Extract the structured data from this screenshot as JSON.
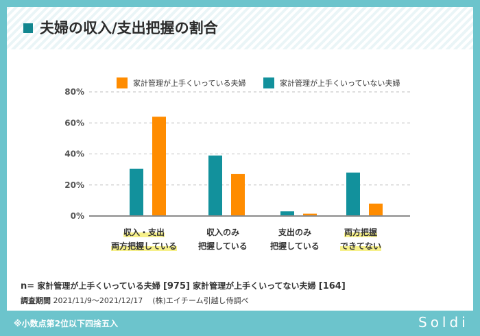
{
  "title": "夫婦の収入/支出把握の割合",
  "footer_note": "※小数点第2位以下四捨五入",
  "logo_text": "Soldi",
  "colors": {
    "orange": "#ff8c00",
    "teal": "#12919c",
    "accent": "#12868f",
    "background": "#6cc4cc",
    "highlight": "#f6f08a"
  },
  "chart_data": {
    "type": "bar",
    "categories": [
      [
        "収入・支出",
        "両方把握している"
      ],
      [
        "収入のみ",
        "把握している"
      ],
      [
        "支出のみ",
        "把握している"
      ],
      [
        "両方把握",
        "できてない"
      ]
    ],
    "highlighted_categories": [
      0,
      3
    ],
    "series": [
      {
        "name": "家計管理が上手くいっていない夫婦",
        "color": "#12919c",
        "values": [
          30.5,
          39.0,
          3.0,
          28.0
        ]
      },
      {
        "name": "家計管理が上手くいっている夫婦",
        "color": "#ff8c00",
        "values": [
          64.0,
          27.0,
          1.5,
          8.0
        ]
      }
    ],
    "legend_order": [
      1,
      0
    ],
    "yticks": [
      "0%",
      "20%",
      "40%",
      "60%",
      "80%"
    ],
    "ylim": [
      0,
      80
    ],
    "grid": "dashed",
    "legend_position": "top"
  },
  "notes": {
    "n_label": "n=",
    "sample1_label": "家計管理が上手くいっている夫婦",
    "sample1_n": "[975]",
    "sample2_label": "家計管理が上手くいってない夫婦",
    "sample2_n": "[164]",
    "period_label": "調査期間",
    "period": "2021/11/9〜2021/12/17",
    "source": "(株)エイチーム引越し侍調べ"
  }
}
